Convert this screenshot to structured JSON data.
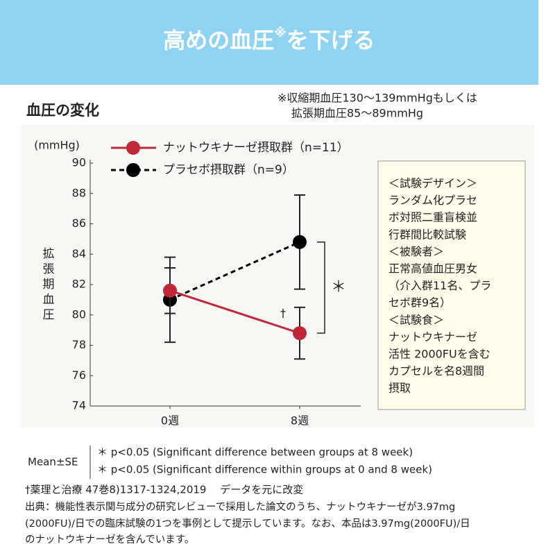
{
  "header": {
    "title_main": "高めの血圧",
    "title_mark": "※",
    "title_end": "を下げる"
  },
  "section_title": "血圧の変化",
  "condition_note": [
    "※収縮期血圧130～139mmHgもしくは",
    "拡張期血圧85～89mmHg"
  ],
  "chart_data": {
    "type": "line",
    "y_unit": "(mmHg)",
    "ylabel": "拡張期血圧",
    "categories": [
      "0週",
      "8週"
    ],
    "ylim": [
      74,
      90
    ],
    "yticks": [
      74,
      76,
      78,
      80,
      82,
      84,
      86,
      88,
      90
    ],
    "series": [
      {
        "name": "ナットウキナーゼ摂取群（n=11）",
        "color": "#c0283a",
        "dash": false,
        "values": [
          81.6,
          78.8
        ],
        "errors": [
          1.5,
          1.7
        ]
      },
      {
        "name": "プラセボ摂取群（n=9）",
        "color": "#000000",
        "dash": true,
        "values": [
          81.0,
          84.8
        ],
        "errors": [
          2.8,
          3.1
        ]
      }
    ],
    "annotations": {
      "within": "†",
      "between": "＊"
    }
  },
  "design_box": [
    "＜試験デザイン＞",
    "ランダム化プラセ",
    "ボ対照二重盲検並",
    "行群間比較試験",
    "＜被験者＞",
    "正常高値血圧男女",
    "（介入群11名、プラ",
    "セボ群9名）",
    "＜試験食＞",
    "ナットウキナーゼ",
    "活性 2000FUを含む",
    "カプセルを名8週間",
    "摂取"
  ],
  "stats": {
    "label": "Mean±SE",
    "notes": [
      "＊ p<0.05 (Significant difference between groups at 8 week)",
      "＊ p<0.05 (Significant difference within groups at 0 and 8 week)"
    ]
  },
  "reference": "†薬理と治療 47巻8)1317-1324,2019　 データを元に改変",
  "source": [
    "出典：機能性表示関与成分の研究レビューで採用した論文のうち、ナットウキナーゼが3.97mg",
    "(2000FU)/日での臨床試験の1つを事例として提示しています。なお、本品は3.97mg(2000FU)/日",
    "のナットウキナーゼを含んでいます。"
  ]
}
